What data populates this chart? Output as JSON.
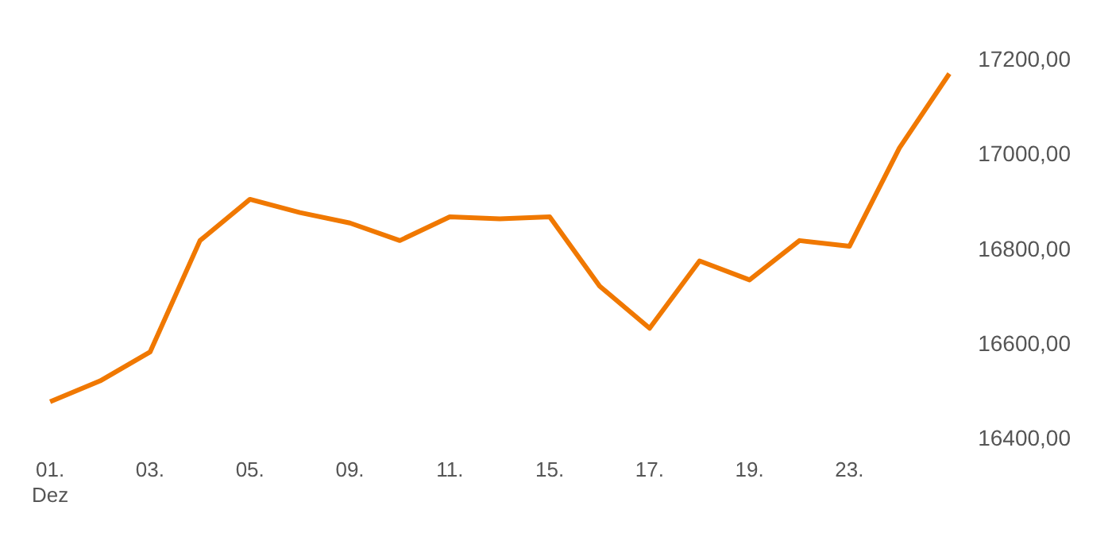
{
  "chart_data": {
    "type": "line",
    "categories": [
      "01.\nDez",
      null,
      "03.",
      null,
      "05.",
      null,
      "09.",
      null,
      "11.",
      null,
      "15.",
      null,
      "17.",
      null,
      "19.",
      null,
      "23.",
      null,
      null
    ],
    "series": [
      {
        "color": "#f07800",
        "values": [
          16480,
          16524,
          16585,
          16820,
          16907,
          16879,
          16857,
          16820,
          16870,
          16866,
          16870,
          16724,
          16635,
          16777,
          16737,
          16820,
          16808,
          17015,
          17172
        ]
      }
    ],
    "ylim": [
      16400,
      17200
    ],
    "yticks": [
      {
        "value": 16400,
        "label": "16400,00"
      },
      {
        "value": 16600,
        "label": "16600,00"
      },
      {
        "value": 16800,
        "label": "16800,00"
      },
      {
        "value": 17000,
        "label": "17000,00"
      },
      {
        "value": 17200,
        "label": "17200,00"
      }
    ],
    "grid": false,
    "legend": false,
    "marker": "none",
    "line_style": "solid"
  }
}
